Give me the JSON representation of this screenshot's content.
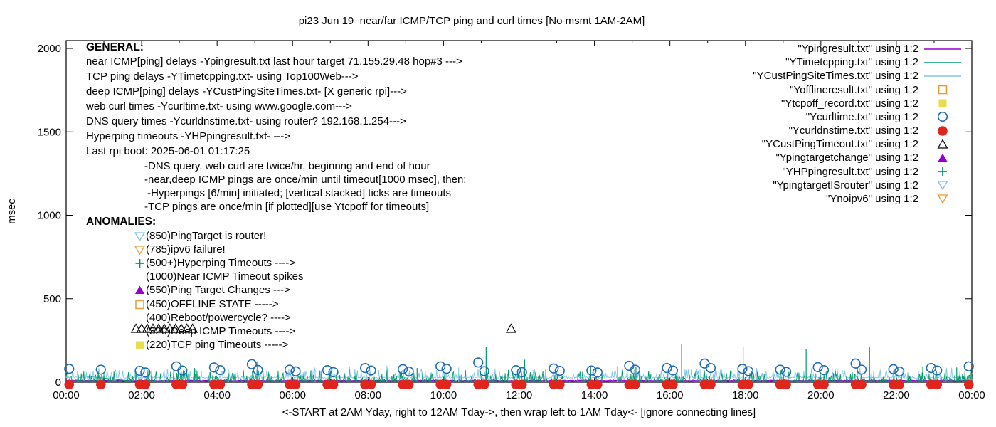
{
  "chart_data": {
    "type": "line",
    "title": "pi23 Jun 19  near/far ICMP/TCP ping and curl times [No msmt 1AM-2AM]",
    "xlabel": "<-START at 2AM Yday, right to 12AM Tday->, then wrap left to 1AM Tday<- [ignore connecting lines]",
    "ylabel": "msec",
    "x_ticks": [
      "00:00",
      "02:00",
      "04:00",
      "06:00",
      "08:00",
      "10:00",
      "12:00",
      "14:00",
      "16:00",
      "18:00",
      "20:00",
      "22:00",
      "00:00"
    ],
    "x_hours": 24,
    "x_tick_step_hours": 2,
    "y_ticks": [
      0,
      500,
      1000,
      1500,
      2000
    ],
    "ylim": [
      0,
      2047
    ],
    "grid": false,
    "legend_position": "top-right",
    "noise_seed": 20250619,
    "no_measurement_gap_hours": [
      1,
      2
    ],
    "wrap_connector": {
      "from": [
        0.4,
        38
      ],
      "to": [
        2.0,
        1
      ],
      "color": "#00996B"
    },
    "series": [
      {
        "name": "\"Ypingresult.txt\" using 1:2",
        "color": "#9400D3",
        "style": "line",
        "role": "near ICMP ping delays",
        "flat_line": {
          "base": 10,
          "jitter": 4
        }
      },
      {
        "name": "\"YTimetcpping.txt\" using 1:2",
        "color": "#00996B",
        "style": "line",
        "role": "TCP ping delays noise band",
        "noise": {
          "base": 3,
          "grass": 68,
          "density": 0.5
        },
        "spikes": [
          [
            3.4,
            85
          ],
          [
            5.07,
            125
          ],
          [
            7.5,
            92
          ],
          [
            9.3,
            85
          ],
          [
            11.13,
            212
          ],
          [
            12.15,
            135
          ],
          [
            13.9,
            95
          ],
          [
            15.1,
            90
          ],
          [
            16.31,
            230
          ],
          [
            17.94,
            212
          ],
          [
            19.61,
            200
          ],
          [
            21.29,
            212
          ],
          [
            22.7,
            95
          ],
          [
            23.6,
            88
          ]
        ]
      },
      {
        "name": "\"YCustPingSiteTimes.txt\" using 1:2",
        "color": "#7EC5E8",
        "style": "line",
        "role": "deep ICMP ping delays noise band",
        "noise": {
          "base": 27,
          "jitter": 7,
          "grass": 58,
          "density": 0.38
        },
        "spikes": [
          [
            2.6,
            70
          ],
          [
            4.3,
            82
          ],
          [
            6.6,
            75
          ],
          [
            8.5,
            98
          ],
          [
            10.4,
            88
          ],
          [
            12.7,
            78
          ],
          [
            14.6,
            92
          ],
          [
            16.8,
            75
          ],
          [
            18.2,
            84
          ],
          [
            20.3,
            78
          ],
          [
            21.8,
            88
          ],
          [
            23.3,
            80
          ]
        ]
      },
      {
        "name": "\"Yofflineresult.txt\" using 1:2",
        "color": "#E89B2E",
        "style": "open-square",
        "points": []
      },
      {
        "name": "\"Ytcpoff_record.txt\" using 1:2",
        "color": "#E6DE4C",
        "style": "filled-square",
        "points": []
      },
      {
        "name": "\"Ycurltime.txt\" using 1:2",
        "color": "#1D6BB7",
        "style": "open-circle",
        "points": [
          [
            0.08,
            80
          ],
          [
            0.92,
            75
          ],
          [
            1.95,
            68
          ],
          [
            2.1,
            58
          ],
          [
            2.92,
            95
          ],
          [
            3.08,
            70
          ],
          [
            3.92,
            88
          ],
          [
            4.08,
            72
          ],
          [
            4.92,
            108
          ],
          [
            5.08,
            73
          ],
          [
            5.92,
            75
          ],
          [
            6.08,
            65
          ],
          [
            6.92,
            72
          ],
          [
            7.08,
            60
          ],
          [
            7.92,
            85
          ],
          [
            8.08,
            70
          ],
          [
            8.92,
            78
          ],
          [
            9.08,
            64
          ],
          [
            9.92,
            95
          ],
          [
            10.08,
            80
          ],
          [
            10.92,
            118
          ],
          [
            11.08,
            66
          ],
          [
            11.92,
            72
          ],
          [
            12.08,
            60
          ],
          [
            12.92,
            82
          ],
          [
            13.08,
            68
          ],
          [
            13.92,
            70
          ],
          [
            14.08,
            58
          ],
          [
            14.92,
            98
          ],
          [
            15.08,
            75
          ],
          [
            15.92,
            85
          ],
          [
            16.08,
            70
          ],
          [
            16.92,
            112
          ],
          [
            17.08,
            85
          ],
          [
            17.92,
            80
          ],
          [
            18.08,
            66
          ],
          [
            18.92,
            75
          ],
          [
            19.08,
            62
          ],
          [
            19.92,
            90
          ],
          [
            20.08,
            72
          ],
          [
            20.92,
            112
          ],
          [
            21.08,
            75
          ],
          [
            21.92,
            78
          ],
          [
            22.08,
            64
          ],
          [
            22.92,
            85
          ],
          [
            23.08,
            70
          ],
          [
            23.92,
            95
          ]
        ]
      },
      {
        "name": "\"Ycurldnstime.txt\" using 1:2",
        "color": "#E0251C",
        "style": "filled-circle",
        "points_t": [
          0.08,
          0.92,
          1.95,
          2.1,
          2.92,
          3.08,
          3.92,
          4.08,
          4.92,
          5.08,
          5.92,
          6.08,
          6.92,
          7.08,
          7.92,
          8.08,
          8.92,
          9.08,
          9.92,
          10.08,
          10.92,
          11.08,
          11.92,
          12.08,
          12.92,
          13.08,
          13.92,
          14.08,
          14.92,
          15.08,
          15.92,
          16.08,
          16.92,
          17.08,
          17.92,
          18.08,
          18.92,
          19.08,
          19.92,
          20.08,
          20.92,
          21.08,
          21.92,
          22.08,
          22.92,
          23.08,
          23.92
        ],
        "value": 3
      },
      {
        "name": "\"YCustPingTimeout.txt\" using 1:2",
        "color": "#000000",
        "style": "open-triangle",
        "points": [
          [
            1.85,
            320
          ],
          [
            2.0,
            320
          ],
          [
            2.15,
            320
          ],
          [
            2.3,
            320
          ],
          [
            2.45,
            320
          ],
          [
            2.6,
            320
          ],
          [
            2.75,
            320
          ],
          [
            2.9,
            320
          ],
          [
            3.05,
            320
          ],
          [
            3.2,
            320
          ],
          [
            3.35,
            320
          ],
          [
            11.79,
            320
          ]
        ]
      },
      {
        "name": "\"Ypingtargetchange\" using 1:2",
        "color": "#9400D3",
        "style": "filled-triangle",
        "points": []
      },
      {
        "name": "\"YHPpingresult.txt\" using 1:2",
        "color": "#00947B",
        "style": "plus",
        "points": []
      },
      {
        "name": "\"YpingtargetISrouter\" using 1:2",
        "color": "#7EC5E8",
        "style": "open-down-triangle",
        "points": []
      },
      {
        "name": "\"Ynoipv6\" using 1:2",
        "color": "#E89B2E",
        "style": "open-down-triangle",
        "points": []
      }
    ]
  },
  "annotations": {
    "general": {
      "heading": "GENERAL:",
      "lines": [
        "near ICMP[ping] delays -Ypingresult.txt last hour target 71.155.29.48 hop#3 --->",
        "TCP ping delays -YTimetcpping.txt- using Top100Web--->",
        "deep ICMP[ping] delays -YCustPingSiteTimes.txt- [X generic rpi]--->",
        "web curl times -Ycurltime.txt- using www.google.com--->",
        "DNS query times -Ycurldnstime.txt- using router? 192.168.1.254--->",
        "Hyperping timeouts -YHPpingresult.txt- --->",
        "Last rpi boot: 2025-06-01 01:17:25"
      ],
      "sub_lines": [
        "-DNS query, web curl are twice/hr, beginnng and end of hour",
        "-near,deep ICMP pings are once/min until timeout[1000 msec], then:",
        " -Hyperpings [6/min] initiated; [vertical stacked] ticks are timeouts",
        "-TCP pings are once/min [if plotted][use Ytcpoff for timeouts]"
      ]
    },
    "anomalies": {
      "heading": "ANOMALIES:",
      "items": [
        {
          "marker": "open-down-triangle",
          "color": "#7EC5E8",
          "text": "(850)PingTarget is router!"
        },
        {
          "marker": "open-down-triangle",
          "color": "#E8A33D",
          "text": "(785)ipv6 failure!"
        },
        {
          "marker": "plus",
          "color": "#00947B",
          "text": "(500+)Hyperping Timeouts ---->"
        },
        {
          "marker": "none",
          "color": "",
          "text": "(1000)Near ICMP Timeout spikes"
        },
        {
          "marker": "filled-triangle",
          "color": "#9400D3",
          "text": "(550)Ping Target Changes --->"
        },
        {
          "marker": "open-square",
          "color": "#E8A33D",
          "text": "(450)OFFLINE STATE ----->"
        },
        {
          "marker": "none",
          "color": "",
          "text": "(400)Reboot/powercycle? ---->"
        },
        {
          "marker": "none",
          "color": "",
          "text": "(320)Deep ICMP Timeouts ---->"
        },
        {
          "marker": "filled-square",
          "color": "#E6DE4C",
          "text": "(220)TCP ping Timeouts ----->"
        }
      ]
    }
  }
}
